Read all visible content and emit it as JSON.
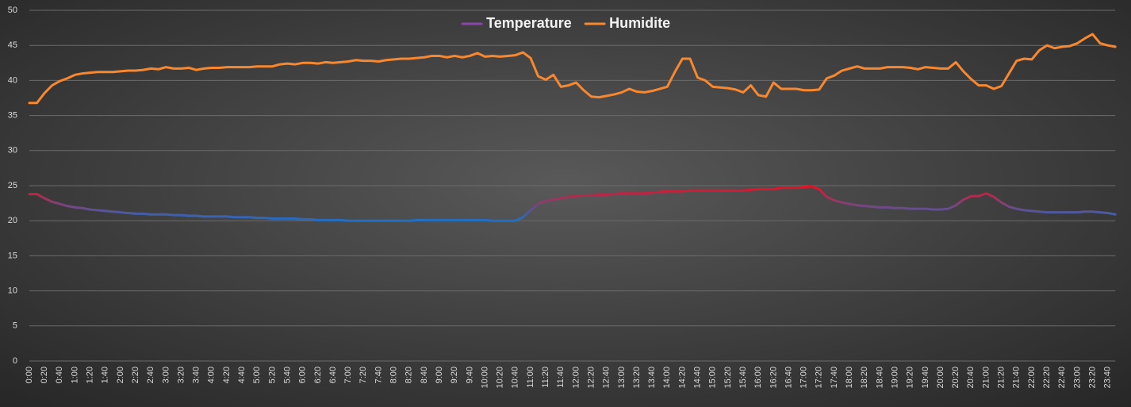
{
  "chart_data": {
    "type": "line",
    "legend": "top",
    "grid": true,
    "ylim": [
      0,
      50
    ],
    "yticks": [
      0,
      5,
      10,
      15,
      20,
      25,
      30,
      35,
      40,
      45,
      50
    ],
    "categories": [
      "0:00",
      null,
      "0:20",
      null,
      "0:40",
      null,
      "1:00",
      null,
      "1:20",
      null,
      "1:40",
      null,
      "2:00",
      null,
      "2:20",
      null,
      "2:40",
      null,
      "3:00",
      null,
      "3:20",
      null,
      "3:40",
      null,
      "4:00",
      null,
      "4:20",
      null,
      "4:40",
      null,
      "5:00",
      null,
      "5:20",
      null,
      "5:40",
      null,
      "6:00",
      null,
      "6:20",
      null,
      "6:40",
      null,
      "7:00",
      null,
      "7:20",
      null,
      "7:40",
      null,
      "8:00",
      null,
      "8:20",
      null,
      "8:40",
      null,
      "9:00",
      null,
      "9:20",
      null,
      "9:40",
      null,
      "10:00",
      null,
      "10:20",
      null,
      "10:40",
      null,
      "11:00",
      null,
      "11:20",
      null,
      "11:40",
      null,
      "12:00",
      null,
      "12:20",
      null,
      "12:40",
      null,
      "13:00",
      null,
      "13:20",
      null,
      "13:40",
      null,
      "14:00",
      null,
      "14:20",
      null,
      "14:40",
      null,
      "15:00",
      null,
      "15:20",
      null,
      "15:40",
      null,
      "16:00",
      null,
      "16:20",
      null,
      "16:40",
      null,
      "17:00",
      null,
      "17:20",
      null,
      "17:40",
      null,
      "18:00",
      null,
      "18:20",
      null,
      "18:40",
      null,
      "19:00",
      null,
      "19:20",
      null,
      "19:40",
      null,
      "20:00",
      null,
      "20:20",
      null,
      "20:40",
      null,
      "21:00",
      null,
      "21:20",
      null,
      "21:40",
      null,
      "22:00",
      null,
      "22:20",
      null,
      "22:40",
      null,
      "23:00",
      null,
      "23:20",
      null,
      "23:40",
      null
    ],
    "series": [
      {
        "name": "Temperature",
        "color": "#8e44ad",
        "gradient_colors": [
          "#1f6fc5",
          "#e81123"
        ],
        "values": [
          23.8,
          23.8,
          23.2,
          22.7,
          22.4,
          22.1,
          21.9,
          21.8,
          21.6,
          21.5,
          21.4,
          21.3,
          21.2,
          21.1,
          21.0,
          21.0,
          20.9,
          20.9,
          20.9,
          20.8,
          20.8,
          20.7,
          20.7,
          20.6,
          20.6,
          20.6,
          20.6,
          20.5,
          20.5,
          20.5,
          20.4,
          20.4,
          20.3,
          20.3,
          20.3,
          20.3,
          20.2,
          20.2,
          20.1,
          20.1,
          20.1,
          20.1,
          20.0,
          20.0,
          20.0,
          20.0,
          20.0,
          20.0,
          20.0,
          20.0,
          20.0,
          20.1,
          20.1,
          20.1,
          20.1,
          20.1,
          20.1,
          20.1,
          20.1,
          20.1,
          20.1,
          20.0,
          20.0,
          20.0,
          20.0,
          20.5,
          21.5,
          22.4,
          22.8,
          23.0,
          23.2,
          23.4,
          23.5,
          23.6,
          23.6,
          23.7,
          23.7,
          23.8,
          23.9,
          23.9,
          23.9,
          23.9,
          24.0,
          24.1,
          24.2,
          24.2,
          24.2,
          24.3,
          24.3,
          24.3,
          24.3,
          24.3,
          24.3,
          24.3,
          24.3,
          24.4,
          24.5,
          24.5,
          24.5,
          24.7,
          24.7,
          24.7,
          24.8,
          24.9,
          24.5,
          23.4,
          22.9,
          22.6,
          22.4,
          22.2,
          22.1,
          22.0,
          21.9,
          21.9,
          21.8,
          21.8,
          21.7,
          21.7,
          21.7,
          21.6,
          21.6,
          21.7,
          22.2,
          23.0,
          23.5,
          23.5,
          23.9,
          23.4,
          22.6,
          22.0,
          21.7,
          21.5,
          21.4,
          21.3,
          21.2,
          21.2,
          21.2,
          21.2,
          21.2,
          21.3,
          21.3,
          21.2,
          21.1,
          20.9
        ]
      },
      {
        "name": "Humidite",
        "color": "#f7882f",
        "values": [
          36.8,
          36.8,
          38.2,
          39.3,
          39.9,
          40.3,
          40.8,
          41.0,
          41.1,
          41.2,
          41.2,
          41.2,
          41.3,
          41.4,
          41.4,
          41.5,
          41.7,
          41.6,
          41.9,
          41.7,
          41.7,
          41.8,
          41.5,
          41.7,
          41.8,
          41.8,
          41.9,
          41.9,
          41.9,
          41.9,
          42.0,
          42.0,
          42.0,
          42.3,
          42.4,
          42.3,
          42.5,
          42.5,
          42.4,
          42.6,
          42.5,
          42.6,
          42.7,
          42.9,
          42.8,
          42.8,
          42.7,
          42.9,
          43.0,
          43.1,
          43.1,
          43.2,
          43.3,
          43.5,
          43.5,
          43.3,
          43.5,
          43.3,
          43.5,
          43.9,
          43.4,
          43.5,
          43.4,
          43.5,
          43.6,
          44.0,
          43.2,
          40.6,
          40.1,
          40.8,
          39.1,
          39.3,
          39.7,
          38.6,
          37.7,
          37.6,
          37.8,
          38.0,
          38.3,
          38.8,
          38.4,
          38.3,
          38.5,
          38.8,
          39.1,
          41.2,
          43.1,
          43.1,
          40.4,
          40.0,
          39.1,
          39.0,
          38.9,
          38.7,
          38.3,
          39.3,
          37.9,
          37.7,
          39.7,
          38.8,
          38.8,
          38.8,
          38.6,
          38.6,
          38.7,
          40.3,
          40.7,
          41.4,
          41.7,
          42.0,
          41.7,
          41.7,
          41.7,
          41.9,
          41.9,
          41.9,
          41.8,
          41.6,
          41.9,
          41.8,
          41.7,
          41.7,
          42.6,
          41.3,
          40.2,
          39.3,
          39.3,
          38.8,
          39.2,
          41.0,
          42.8,
          43.1,
          43.0,
          44.3,
          45.0,
          44.6,
          44.8,
          44.9,
          45.3,
          46.0,
          46.6,
          45.3,
          45.0,
          44.8
        ]
      }
    ]
  }
}
